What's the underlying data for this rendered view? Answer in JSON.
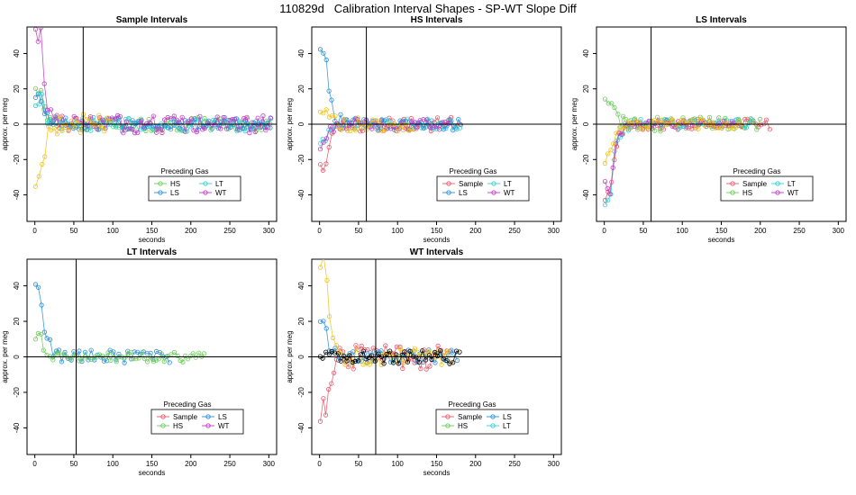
{
  "page_title": "110829d   Calibration Interval Shapes - SP-WT Slope Diff",
  "colors": {
    "Sample": "#e8596b",
    "HS": "#6bcb5a",
    "LS": "#2b90d8",
    "LT": "#2fd0d8",
    "WT": "#c23bc2",
    "yellow": "#f2c21b",
    "black": "#000000"
  },
  "chart_data": [
    {
      "type": "scatter",
      "title": "Sample Intervals",
      "xlabel": "seconds",
      "ylabel": "approx. per meg",
      "xlim": [
        -10,
        310
      ],
      "ylim": [
        -55,
        55
      ],
      "x_ticks": [
        0,
        50,
        100,
        150,
        200,
        250,
        300
      ],
      "y_ticks": [
        -40,
        -20,
        0,
        20,
        40
      ],
      "vline": 62,
      "hline": 0,
      "legend": {
        "title": "Preceding Gas",
        "entries": [
          "HS",
          "LT",
          "LS",
          "WT"
        ]
      },
      "series": [
        {
          "name": "HS",
          "color": "#6bcb5a",
          "x_end": 305,
          "peak": 22,
          "noise": 4
        },
        {
          "name": "LT",
          "color": "#2fd0d8",
          "x_end": 305,
          "peak": 15,
          "noise": 4
        },
        {
          "name": "LS",
          "color": "#2b90d8",
          "x_end": 305,
          "peak": 18,
          "noise": 3.5
        },
        {
          "name": "WT",
          "color": "#c23bc2",
          "x_end": 305,
          "peak": 50,
          "noise": 5
        },
        {
          "color": "#f2c21b",
          "x_end": 100,
          "peak": -35,
          "noise": 6
        }
      ]
    },
    {
      "type": "scatter",
      "title": "HS Intervals",
      "xlabel": "seconds",
      "ylabel": "approx. per meg",
      "xlim": [
        -10,
        310
      ],
      "ylim": [
        -55,
        55
      ],
      "x_ticks": [
        0,
        50,
        100,
        150,
        200,
        250,
        300
      ],
      "y_ticks": [
        -40,
        -20,
        0,
        20,
        40
      ],
      "vline": 60,
      "hline": 0,
      "legend": {
        "title": "Preceding Gas",
        "entries": [
          "Sample",
          "LT",
          "LS",
          "WT"
        ]
      },
      "series": [
        {
          "name": "Sample",
          "color": "#e8596b",
          "x_end": 180,
          "peak": -25,
          "noise": 4
        },
        {
          "name": "LT",
          "color": "#2fd0d8",
          "x_end": 180,
          "peak": -10,
          "noise": 3
        },
        {
          "name": "LS",
          "color": "#2b90d8",
          "x_end": 185,
          "peak": 50,
          "noise": 3.5
        },
        {
          "name": "WT",
          "color": "#c23bc2",
          "x_end": 170,
          "peak": -12,
          "noise": 3
        },
        {
          "color": "#f2c21b",
          "x_end": 120,
          "peak": 10,
          "noise": 4
        }
      ]
    },
    {
      "type": "scatter",
      "title": "LS Intervals",
      "xlabel": "seconds",
      "ylabel": "approx. per meg",
      "xlim": [
        -10,
        310
      ],
      "ylim": [
        -55,
        55
      ],
      "x_ticks": [
        0,
        50,
        100,
        150,
        200,
        250,
        300
      ],
      "y_ticks": [
        -40,
        -20,
        0,
        20,
        40
      ],
      "vline": 60,
      "hline": 0,
      "legend": {
        "title": "Preceding Gas",
        "entries": [
          "Sample",
          "LT",
          "HS",
          "WT"
        ]
      },
      "series": [
        {
          "name": "Sample",
          "color": "#e8596b",
          "x_end": 215,
          "peak": -55,
          "noise": 3
        },
        {
          "name": "HS",
          "color": "#6bcb5a",
          "x_end": 200,
          "peak": 15,
          "noise": 4
        },
        {
          "name": "LT",
          "color": "#2fd0d8",
          "x_end": 190,
          "peak": -45,
          "noise": 3
        },
        {
          "name": "WT",
          "color": "#c23bc2",
          "x_end": 180,
          "peak": -40,
          "noise": 2.5
        },
        {
          "color": "#f2c21b",
          "x_end": 180,
          "peak": -20,
          "noise": 3
        }
      ]
    },
    {
      "type": "scatter",
      "title": "LT Intervals",
      "xlabel": "seconds",
      "ylabel": "approx. per meg",
      "xlim": [
        -10,
        310
      ],
      "ylim": [
        -55,
        55
      ],
      "x_ticks": [
        0,
        50,
        100,
        150,
        200,
        250,
        300
      ],
      "y_ticks": [
        -40,
        -20,
        0,
        20,
        40
      ],
      "vline": 53,
      "hline": 0,
      "legend": {
        "title": "Preceding Gas",
        "entries": [
          "Sample",
          "LS",
          "HS",
          "WT"
        ]
      },
      "series": [
        {
          "name": "LS",
          "color": "#2b90d8",
          "x_end": 175,
          "peak": 45,
          "noise": 4
        },
        {
          "name": "HS",
          "color": "#6bcb5a",
          "x_end": 220,
          "peak": 12,
          "noise": 3
        }
      ]
    },
    {
      "type": "scatter",
      "title": "WT Intervals",
      "xlabel": "seconds",
      "ylabel": "approx. per meg",
      "xlim": [
        -10,
        310
      ],
      "ylim": [
        -55,
        55
      ],
      "x_ticks": [
        0,
        50,
        100,
        150,
        200,
        250,
        300
      ],
      "y_ticks": [
        -40,
        -20,
        0,
        20,
        40
      ],
      "vline": 72,
      "hline": 0,
      "legend": {
        "title": "Preceding Gas",
        "entries": [
          "Sample",
          "LS",
          "HS",
          "LT"
        ]
      },
      "series": [
        {
          "name": "Sample",
          "color": "#e8596b",
          "x_end": 170,
          "peak": -40,
          "noise": 7
        },
        {
          "name": "LS",
          "color": "#2b90d8",
          "x_end": 180,
          "peak": 18,
          "noise": 4
        },
        {
          "color": "#f2c21b",
          "x_end": 170,
          "peak": 55,
          "noise": 5
        },
        {
          "color": "#000000",
          "x_end": 180,
          "peak": 4,
          "noise": 4
        }
      ]
    }
  ]
}
